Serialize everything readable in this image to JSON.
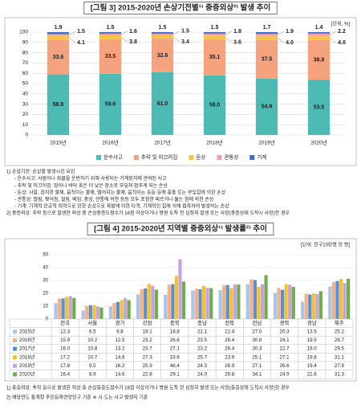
{
  "chart_data": [
    {
      "type": "bar",
      "stacked": true,
      "title": "[그림 3] 2015-2020년 손상기전별¹⁾ 중증외상²⁾ 발생 추이",
      "unit_label": "[단위, %]",
      "categories": [
        "2015년",
        "2016년",
        "2017년",
        "2018년",
        "2019년",
        "2020년"
      ],
      "series": [
        {
          "name": "운수사고",
          "color": "#4dbab3",
          "values": [
            58.9,
            59.6,
            61.0,
            58.0,
            54.9,
            53.5
          ],
          "value_labels": [
            "58.9",
            "59.6",
            "61.0",
            "58.0",
            "54.9",
            "53.5"
          ]
        },
        {
          "name": "추락 및 미끄러짐",
          "color": "#f5a27e",
          "values": [
            33.6,
            33.5,
            32.6,
            35.1,
            37.5,
            38.9
          ],
          "value_labels": [
            "33.6",
            "33.5",
            "32.6",
            "35.1",
            "37.5",
            "38.9"
          ]
        },
        {
          "name": "둔상",
          "color": "#f6c445",
          "values": [
            4.1,
            3.8,
            3.4,
            3.6,
            4.0,
            4.0
          ],
          "value_labels": [
            "4.1",
            "3.8",
            "3.4",
            "3.6",
            "4.0",
            "4.0"
          ]
        },
        {
          "name": "관통상",
          "color": "#f59bb7",
          "values": [
            1.5,
            1.6,
            1.5,
            1.8,
            1.9,
            2.2
          ],
          "value_labels": [
            "1.5",
            "1.6",
            "1.5",
            "1.8",
            "1.9",
            "2.2"
          ]
        },
        {
          "name": "기계",
          "color": "#3f6fc0",
          "values": [
            1.9,
            1.5,
            1.5,
            1.5,
            1.7,
            1.4
          ],
          "value_labels": [
            "1.9",
            "1.5",
            "1.5",
            "1.5",
            "1.7",
            "1.4"
          ]
        }
      ],
      "ylim": [
        0,
        100
      ],
      "yticks": [
        0,
        10,
        20,
        30,
        40,
        50,
        60,
        70,
        80,
        90,
        100
      ],
      "grid": true,
      "legend": "bottom"
    },
    {
      "type": "bar",
      "stacked": false,
      "title": "[그림 4] 2015-2020년 지역별 중증외상¹⁾ 발생률²⁾ 추이",
      "unit_label": "[단위: 인구10만명 당 명]",
      "categories": [
        "전국",
        "서울",
        "경기",
        "강원",
        "충북",
        "충남",
        "전북",
        "전남",
        "경북",
        "경남",
        "제주"
      ],
      "series": [
        {
          "name": "2015년",
          "color": "#a9c6e6",
          "values": [
            12.3,
            6.5,
            9.8,
            19.1,
            18.8,
            22.1,
            22.4,
            27.0,
            20.3,
            13.5,
            25.2
          ],
          "value_labels": [
            "12.3",
            "6.5",
            "9.8",
            "19.1",
            "18.8",
            "22.1",
            "22.4",
            "27.0",
            "20.3",
            "13.5",
            "25.2"
          ]
        },
        {
          "name": "2016년",
          "color": "#f4b183",
          "values": [
            15.9,
            10.2,
            12.5,
            23.2,
            26.6,
            23.5,
            26.4,
            30.8,
            24.1,
            19.5,
            28.7
          ],
          "value_labels": [
            "15.9",
            "10.2",
            "12.5",
            "23.2",
            "26.6",
            "23.5",
            "26.4",
            "30.8",
            "24.1",
            "19.5",
            "28.7"
          ]
        },
        {
          "name": "2017년",
          "color": "#5b8fd0",
          "values": [
            16.0,
            10.8,
            13.2,
            23.7,
            27.1,
            23.2,
            26.4,
            30.3,
            22.7,
            19.0,
            29.5
          ],
          "value_labels": [
            "16.0",
            "10.8",
            "13.2",
            "23.7",
            "27.1",
            "23.2",
            "26.4",
            "30.3",
            "22.7",
            "19.0",
            "29.5"
          ]
        },
        {
          "name": "2018년",
          "color": "#f2c230",
          "values": [
            17.2,
            10.7,
            14.6,
            27.3,
            33.6,
            25.7,
            23.9,
            25.1,
            27.1,
            19.8,
            31.1
          ],
          "value_labels": [
            "17.2",
            "10.7",
            "14.6",
            "27.3",
            "33.6",
            "25.7",
            "23.9",
            "25.1",
            "27.1",
            "19.8",
            "31.1"
          ]
        },
        {
          "name": "2019년",
          "color": "#c5a3de",
          "values": [
            17.8,
            9.5,
            16.2,
            25.9,
            46.4,
            24.3,
            26.9,
            27.1,
            26.6,
            19.4,
            27.9
          ],
          "value_labels": [
            "17.8",
            "9.5",
            "16.2",
            "25.9",
            "46.4",
            "24.3",
            "26.9",
            "27.1",
            "26.6",
            "19.4",
            "27.9"
          ]
        },
        {
          "name": "2020년",
          "color": "#6fae4a",
          "values": [
            16.4,
            8.9,
            14.6,
            22.8,
            29.1,
            24.0,
            26.8,
            34.1,
            24.9,
            21.6,
            31.3
          ],
          "value_labels": [
            "16.4",
            "8.9",
            "14.6",
            "22.8",
            "29.1",
            "24.0",
            "26.8",
            "34.1",
            "24.9",
            "21.6",
            "31.3"
          ]
        }
      ],
      "ylim": [
        0,
        50
      ],
      "yticks": [
        0,
        10,
        20,
        30,
        40,
        50
      ],
      "grid": true,
      "legend": "table"
    }
  ],
  "notes_figure3": [
    "1) 손상기전: 손상을 발생시킨 요인",
    "- 운수사고: 사람이나 화물을 운반하기 위해 사용되는 기계장치에 관여된 사고",
    "- 추락 및 미끄러짐: 땅이나 바닥 혹은 더 낮은 장소로 부딪쳐 멈추게 되는 손상",
    "- 둔상: 사람, 장치한 물체, 움직이는 물체, 떨어지는 물체, 움직이는 등등 등에 충돌 또는 부딪힘에 의한 손상",
    "- 관통상: 찔림, 찢어짐, 절림, 베임, 총상, 관통에 의한 등등 모두 포함한 찌르거나 뚫는 힘에 의한 손상",
    "- 기계: 기계적 인공적 외력으로 인한 손상으로 폭발에 의한 타격, 기계적인 힘에 의해 접촉하여 발생하는 손상",
    "2) 중증외상: 추락 등으로 발생한 외상 중 손상중증도점수가 16점 이상이거나 병원 도착 전 심정지 발생 또는 사망(중증상태 도착시 사망)한 경우"
  ],
  "notes_figure4": [
    "1) 중증외상: 추락 등으로 발생한 외상 중 손상중증도점수가 16점 이상이거나 병원 도착 전 심정지 발생 또는 사망(중증상태 도착시 사망)한 경우",
    "2) 해당연도 통계청 주민등록연앙인구 기준   ※ 시·도는 사고 발생지 기준"
  ]
}
